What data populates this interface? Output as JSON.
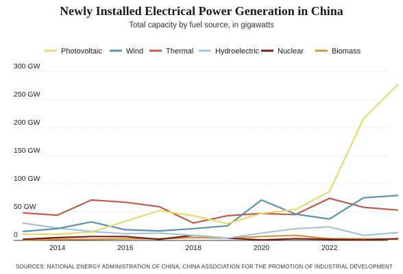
{
  "chart_data": {
    "type": "line",
    "title": "Newly Installed Electrical Power Generation in China",
    "subtitle": "Total capacity by fuel source, in gigawatts",
    "source": "SOURCES: NATIONAL ENERGY ADMINISTRATION OF CHINA, CHINA ASSOCIATION FOR THE PROMOTION OF INDUSTRIAL DEVELOPMENT",
    "x": [
      2013,
      2014,
      2015,
      2016,
      2017,
      2018,
      2019,
      2020,
      2021,
      2022,
      2023,
      2024
    ],
    "x_ticks": [
      "2014",
      "2016",
      "2018",
      "2020",
      "2022"
    ],
    "y_ticks": [
      {
        "value": 0,
        "label": "0"
      },
      {
        "value": 50,
        "label": "50 GW"
      },
      {
        "value": 100,
        "label": "100 GW"
      },
      {
        "value": 150,
        "label": "150 GW"
      },
      {
        "value": 200,
        "label": "200 GW"
      },
      {
        "value": 250,
        "label": "250 GW"
      },
      {
        "value": 300,
        "label": "300 GW"
      }
    ],
    "ylim": [
      0,
      300
    ],
    "xlim": [
      2013,
      2024
    ],
    "grid": "horizontal",
    "legend_position": "top",
    "series": [
      {
        "name": "Photovoltaic",
        "color": "#e8d96c",
        "values": [
          11,
          11,
          15,
          34,
          53,
          44,
          30,
          48,
          55,
          87,
          217,
          277
        ]
      },
      {
        "name": "Wind",
        "color": "#5a8fb3",
        "values": [
          16,
          21,
          33,
          19,
          17,
          21,
          26,
          72,
          47,
          38,
          76,
          80
        ]
      },
      {
        "name": "Thermal",
        "color": "#c05a48",
        "values": [
          49,
          45,
          72,
          68,
          60,
          31,
          44,
          48,
          46,
          75,
          59,
          54
        ]
      },
      {
        "name": "Hydroelectric",
        "color": "#a3c3d6",
        "values": [
          31,
          22,
          16,
          12,
          13,
          9,
          4,
          13,
          21,
          24,
          9,
          14
        ]
      },
      {
        "name": "Nuclear",
        "color": "#7a1e14",
        "values": [
          2,
          5,
          7,
          7,
          2,
          9,
          4,
          1,
          3,
          2,
          1,
          3
        ]
      },
      {
        "name": "Biomass",
        "color": "#d4963a",
        "values": [
          1,
          2,
          2,
          3,
          3,
          5,
          4,
          7,
          9,
          3,
          3,
          2
        ]
      }
    ]
  }
}
